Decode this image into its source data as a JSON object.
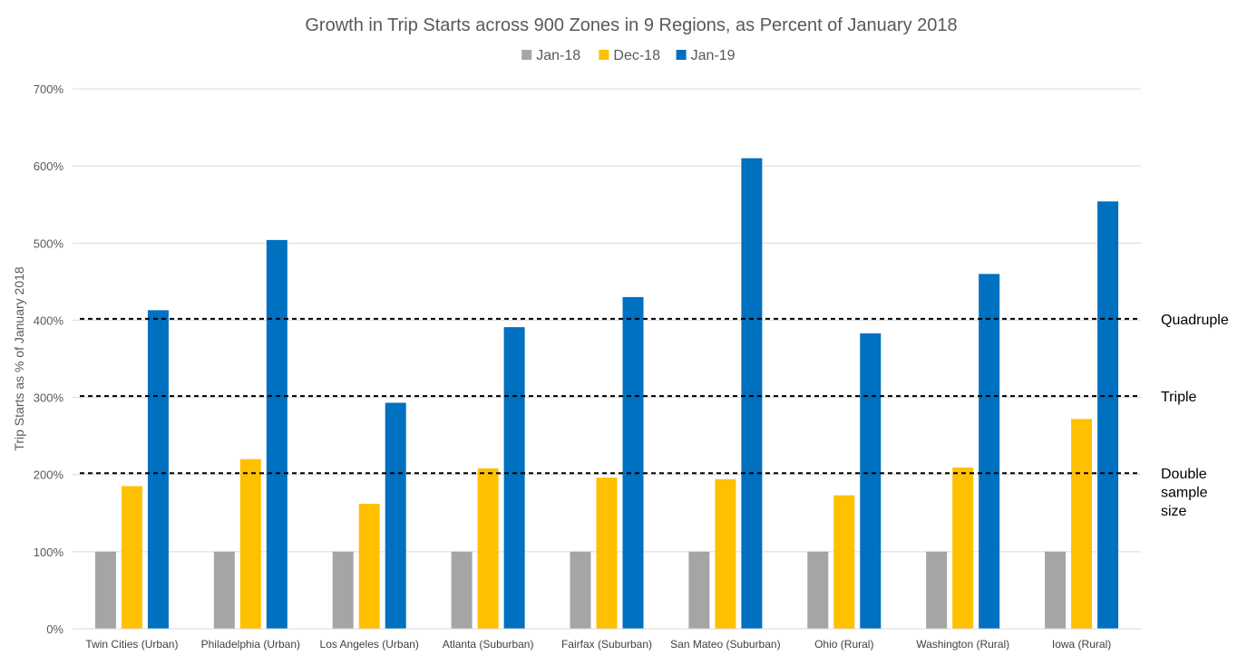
{
  "chart_data": {
    "type": "bar",
    "title": "Growth in Trip Starts across 900 Zones in 9 Regions, as Percent of January 2018",
    "ylabel": "Trip Starts as % of January 2018",
    "xlabel": "",
    "ylim": [
      0,
      700
    ],
    "y_ticks": [
      {
        "value": 0,
        "label": "0%"
      },
      {
        "value": 100,
        "label": "100%"
      },
      {
        "value": 200,
        "label": "200%"
      },
      {
        "value": 300,
        "label": "300%"
      },
      {
        "value": 400,
        "label": "400%"
      },
      {
        "value": 500,
        "label": "500%"
      },
      {
        "value": 600,
        "label": "600%"
      },
      {
        "value": 700,
        "label": "700%"
      }
    ],
    "grid": true,
    "legend_position": "top-center",
    "categories": [
      "Twin Cities (Urban)",
      "Philadelphia (Urban)",
      "Los Angeles (Urban)",
      "Atlanta (Suburban)",
      "Fairfax (Suburban)",
      "San Mateo (Suburban)",
      "Ohio (Rural)",
      "Washington (Rural)",
      "Iowa (Rural)"
    ],
    "series": [
      {
        "name": "Jan-18",
        "color": "#a5a5a5",
        "values": [
          100,
          100,
          100,
          100,
          100,
          100,
          100,
          100,
          100
        ]
      },
      {
        "name": "Dec-18",
        "color": "#ffc000",
        "values": [
          185,
          220,
          162,
          208,
          196,
          194,
          173,
          209,
          272
        ]
      },
      {
        "name": "Jan-19",
        "color": "#0070c0",
        "values": [
          413,
          504,
          293,
          391,
          430,
          610,
          383,
          460,
          554
        ]
      }
    ],
    "reference_lines": [
      {
        "value": 400,
        "label_lines": [
          "Quadruple"
        ]
      },
      {
        "value": 300,
        "label_lines": [
          "Triple"
        ]
      },
      {
        "value": 200,
        "label_lines": [
          "Double",
          "sample",
          "size"
        ]
      }
    ]
  }
}
